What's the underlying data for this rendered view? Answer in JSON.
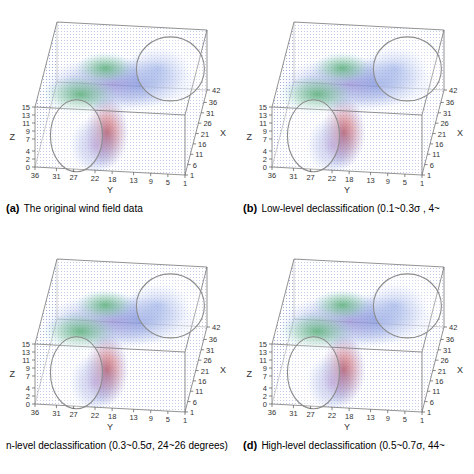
{
  "chart_data": [
    {
      "type": "volume",
      "panel_label": "(a)",
      "title": "The original wind field data",
      "x_label": "X",
      "y_label": "Y",
      "z_label": "Z",
      "xlim": [
        1,
        42
      ],
      "xticks": [
        1,
        6,
        11,
        16,
        21,
        26,
        31,
        36,
        42
      ],
      "ylim": [
        1,
        36
      ],
      "yticks": [
        1,
        5,
        9,
        13,
        18,
        22,
        27,
        31,
        36
      ],
      "zlim": [
        0,
        15
      ],
      "zticks": [
        0,
        2,
        4,
        7,
        9,
        11,
        13,
        15
      ]
    },
    {
      "type": "volume",
      "panel_label": "(b)",
      "title": "Low-level declassification (0.1~0.3σ , 4~",
      "x_label": "X",
      "y_label": "Y",
      "z_label": "Z",
      "xlim": [
        1,
        42
      ],
      "xticks": [
        1,
        6,
        11,
        16,
        21,
        26,
        31,
        36,
        42
      ],
      "ylim": [
        1,
        36
      ],
      "yticks": [
        1,
        5,
        9,
        13,
        18,
        22,
        27,
        31,
        36
      ],
      "zlim": [
        0,
        15
      ],
      "zticks": [
        0,
        2,
        4,
        7,
        9,
        11,
        13,
        15
      ]
    },
    {
      "type": "volume",
      "title": "n-level declassification (0.3~0.5σ, 24~26 degrees)",
      "x_label": "X",
      "y_label": "Y",
      "z_label": "Z",
      "xlim": [
        1,
        42
      ],
      "xticks": [
        1,
        6,
        11,
        16,
        21,
        26,
        31,
        36,
        42
      ],
      "ylim": [
        1,
        36
      ],
      "yticks": [
        1,
        5,
        9,
        13,
        18,
        22,
        27,
        31,
        36
      ],
      "zlim": [
        0,
        15
      ],
      "zticks": [
        0,
        2,
        4,
        7,
        9,
        11,
        13,
        15
      ]
    },
    {
      "type": "volume",
      "panel_label": "(d)",
      "title": "High-level declassification (0.5~0.7σ, 44~",
      "x_label": "X",
      "y_label": "Y",
      "z_label": "Z",
      "xlim": [
        1,
        42
      ],
      "xticks": [
        1,
        6,
        11,
        16,
        21,
        26,
        31,
        36,
        42
      ],
      "ylim": [
        1,
        36
      ],
      "yticks": [
        1,
        5,
        9,
        13,
        18,
        22,
        27,
        31,
        36
      ],
      "zlim": [
        0,
        15
      ],
      "zticks": [
        0,
        2,
        4,
        7,
        9,
        11,
        13,
        15
      ]
    }
  ]
}
